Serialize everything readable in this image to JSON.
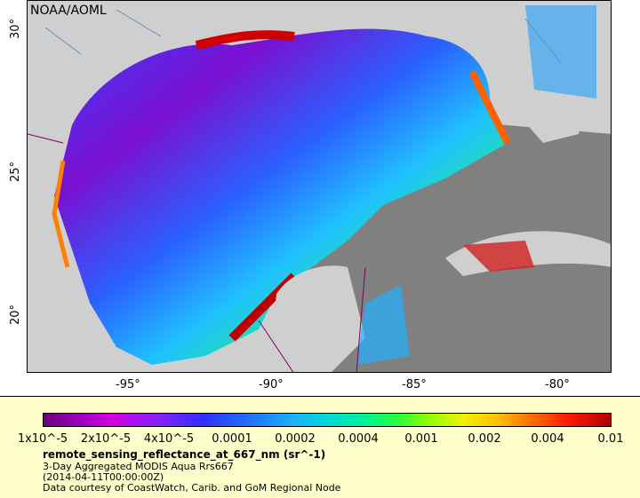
{
  "credit": "NOAA/AOML",
  "y_ticks": [
    "30°",
    "25°",
    "20°"
  ],
  "x_ticks": [
    "-95°",
    "-90°",
    "-85°",
    "-80°"
  ],
  "colorbar": {
    "labels": [
      "1x10^-5",
      "2x10^-5",
      "4x10^-5",
      "0.0001",
      "0.0002",
      "0.0004",
      "0.001",
      "0.002",
      "0.004",
      "0.01"
    ]
  },
  "legend": {
    "variable": "remote_sensing_reflectance_at_667_nm (sr^-1)",
    "product": "3-Day Aggregated MODIS Aqua Rrs667",
    "date": "(2014-04-11T00:00:00Z)",
    "source": "Data courtesy of CoastWatch, Carib. and GoM Regional Node"
  },
  "colors": {
    "land": "#cfcfcf",
    "no_data": "#808080",
    "legend_bg": "#ffffcc"
  }
}
